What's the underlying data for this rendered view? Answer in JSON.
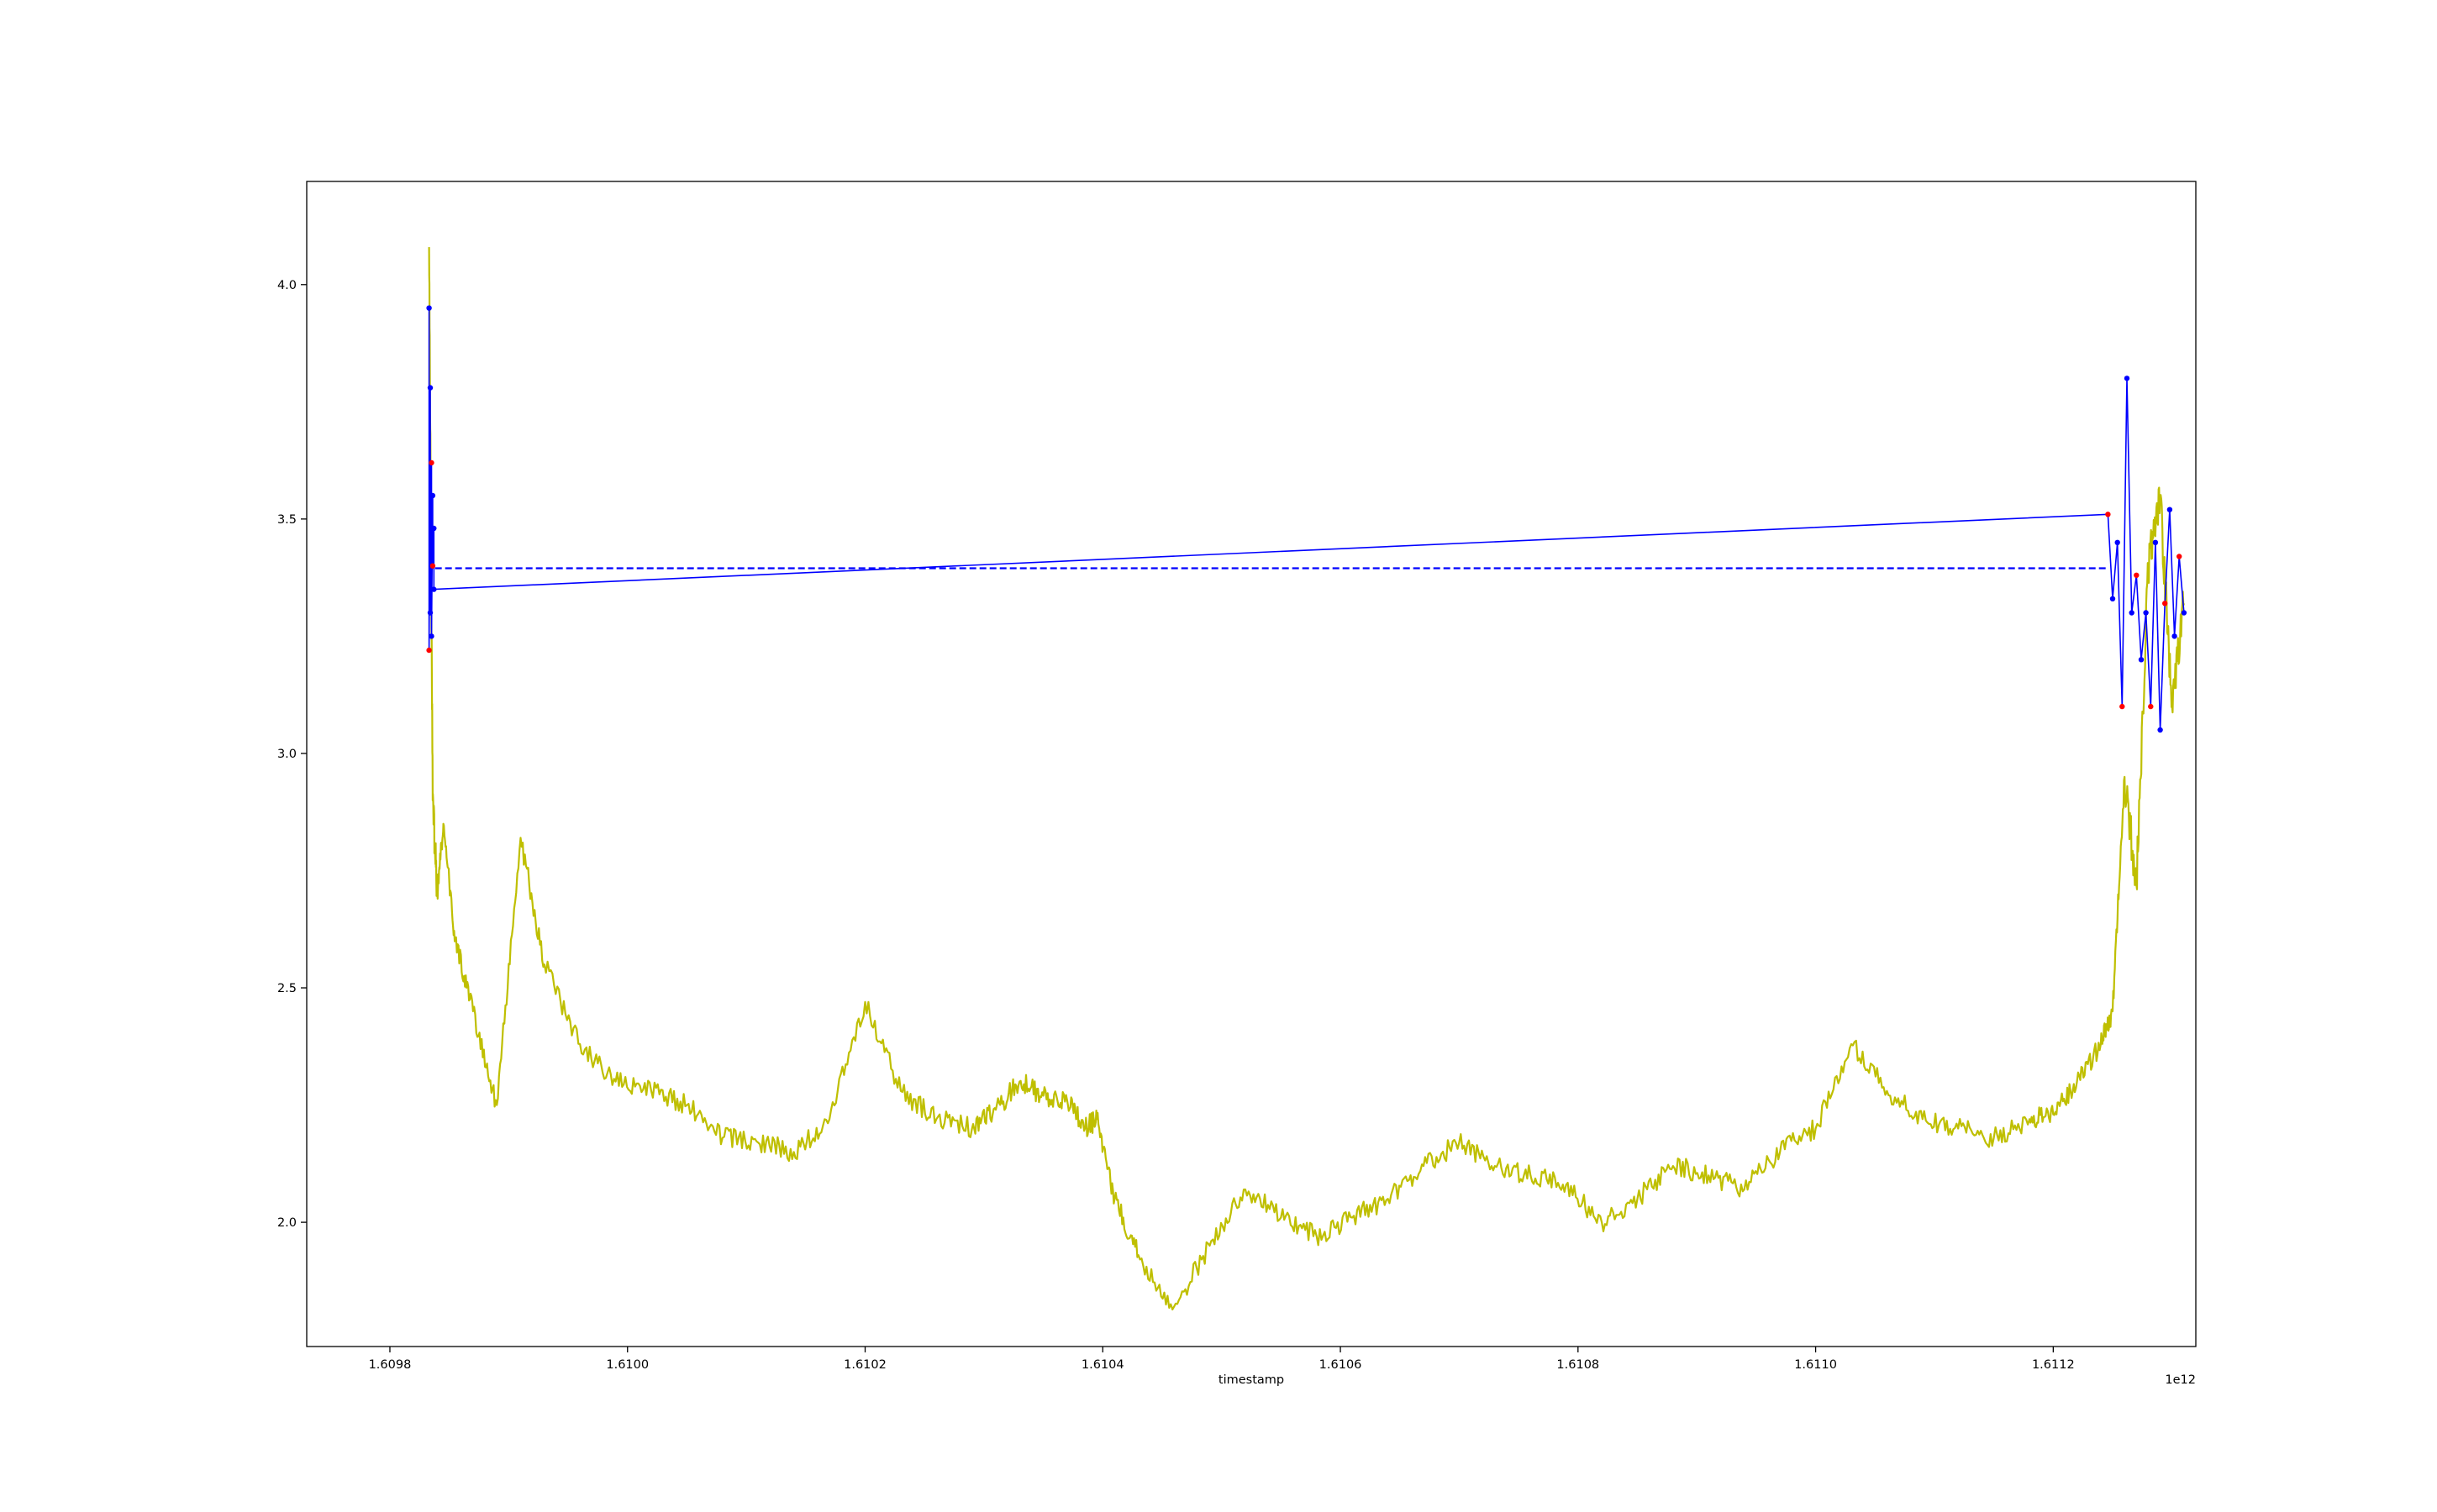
{
  "chart_data": {
    "type": "line",
    "title": "",
    "xlabel": "timestamp",
    "ylabel": "",
    "x_offset_label": "1e12",
    "xlim": [
      1.60973,
      1.61132
    ],
    "ylim": [
      1.735,
      4.22
    ],
    "grid": false,
    "legend": "none",
    "x_ticks": [
      1.6098,
      1.61,
      1.6102,
      1.6104,
      1.6106,
      1.6108,
      1.611,
      1.6112
    ],
    "x_tick_labels": [
      "1.6098",
      "1.6100",
      "1.6102",
      "1.6104",
      "1.6106",
      "1.6108",
      "1.6110",
      "1.6112"
    ],
    "y_ticks": [
      2.0,
      2.5,
      3.0,
      3.5,
      4.0
    ],
    "y_tick_labels": [
      "2.0",
      "2.5",
      "3.0",
      "3.5",
      "4.0"
    ],
    "series": [
      {
        "style": "solid",
        "color": "#bfbf00",
        "x": [
          1.609833,
          1.609836,
          1.60984,
          1.609845,
          1.609855,
          1.60987,
          1.60989,
          1.60991,
          1.60993,
          1.60996,
          1.60999,
          1.61002,
          1.61005,
          1.61008,
          1.61011,
          1.61014,
          1.61017,
          1.6102,
          1.61023,
          1.61026,
          1.61029,
          1.61031,
          1.61033,
          1.61035,
          1.61037,
          1.610385,
          1.610395,
          1.61041,
          1.61043,
          1.61046,
          1.61049,
          1.61052,
          1.61055,
          1.61058,
          1.61061,
          1.61064,
          1.61067,
          1.6107,
          1.61073,
          1.61076,
          1.61079,
          1.61082,
          1.61085,
          1.61088,
          1.61091,
          1.61094,
          1.61097,
          1.611,
          1.61103,
          1.61106,
          1.61109,
          1.61112,
          1.61115,
          1.61118,
          1.6112,
          1.61122,
          1.61124,
          1.61125,
          1.61126,
          1.61127,
          1.61128,
          1.61129,
          1.6113,
          1.61131
        ],
        "y": [
          4.08,
          2.9,
          2.7,
          2.85,
          2.6,
          2.45,
          2.25,
          2.82,
          2.55,
          2.38,
          2.3,
          2.28,
          2.25,
          2.18,
          2.17,
          2.15,
          2.22,
          2.47,
          2.28,
          2.22,
          2.2,
          2.24,
          2.3,
          2.27,
          2.26,
          2.2,
          2.22,
          2.05,
          1.93,
          1.82,
          1.95,
          2.07,
          2.01,
          1.97,
          2.01,
          2.05,
          2.12,
          2.17,
          2.12,
          2.1,
          2.08,
          2.0,
          2.05,
          2.12,
          2.1,
          2.07,
          2.15,
          2.2,
          2.38,
          2.28,
          2.22,
          2.2,
          2.18,
          2.22,
          2.23,
          2.3,
          2.38,
          2.45,
          2.95,
          2.72,
          3.4,
          3.55,
          3.1,
          3.32
        ]
      },
      {
        "style": "dashed",
        "color": "#0000ff",
        "x": [
          1.609838,
          1.611246
        ],
        "y": [
          3.395,
          3.395
        ]
      },
      {
        "style": "markers",
        "color": "#0000ff",
        "alt_color": "#ff0000",
        "x": [
          1.609833,
          1.609833,
          1.609834,
          1.609834,
          1.609835,
          1.609835,
          1.609836,
          1.609836,
          1.609837,
          1.609837,
          1.611246,
          1.61125,
          1.611254,
          1.611258,
          1.611262,
          1.611266,
          1.61127,
          1.611274,
          1.611278,
          1.611282,
          1.611286,
          1.61129,
          1.611294,
          1.611298,
          1.611302,
          1.611306,
          1.61131
        ],
        "y": [
          3.95,
          3.22,
          3.78,
          3.3,
          3.62,
          3.25,
          3.55,
          3.4,
          3.48,
          3.35,
          3.51,
          3.33,
          3.45,
          3.1,
          3.8,
          3.3,
          3.38,
          3.2,
          3.3,
          3.1,
          3.45,
          3.05,
          3.32,
          3.52,
          3.25,
          3.42,
          3.3
        ]
      }
    ]
  }
}
